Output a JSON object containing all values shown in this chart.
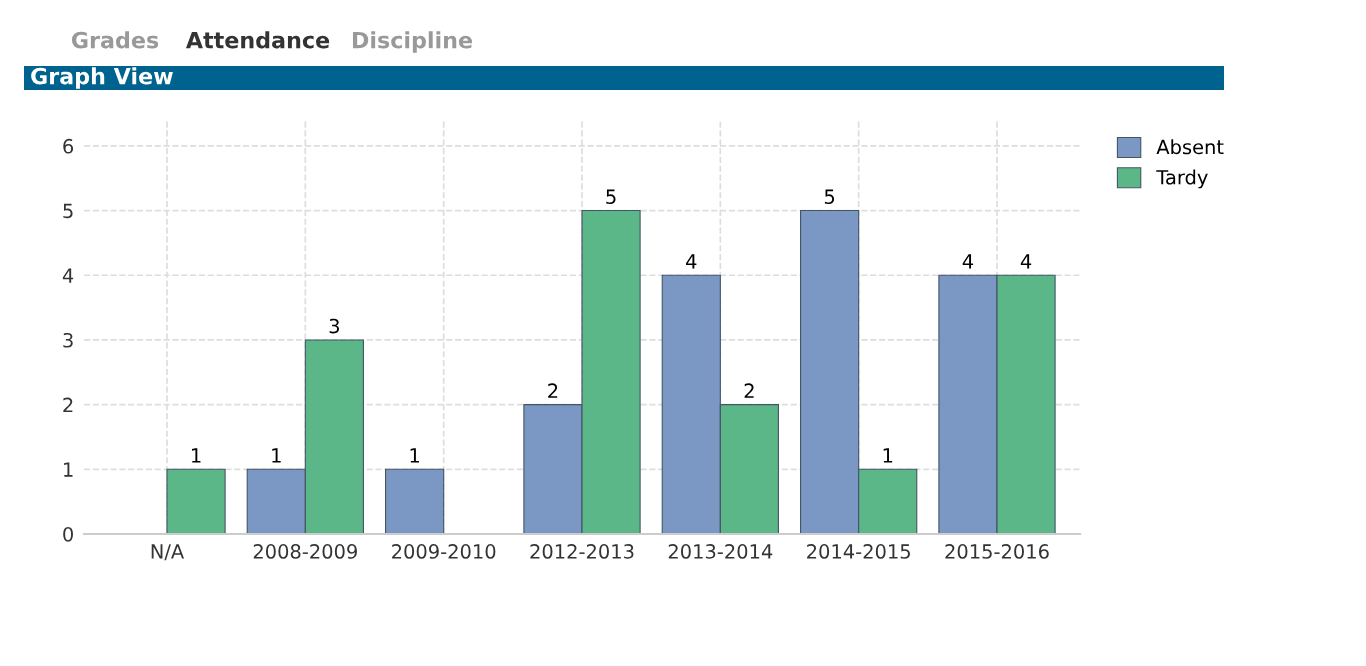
{
  "chart_data": {
    "type": "bar",
    "title": "Graph View",
    "annotations": [
      "Grades",
      "Attendance",
      "Discipline"
    ],
    "categories": [
      "N/A",
      "2008-2009",
      "2009-2010",
      "2012-2013",
      "2013-2014",
      "2014-2015",
      "2015-2016"
    ],
    "series": [
      {
        "name": "Absent",
        "color": "#7b98c4",
        "values": [
          null,
          1,
          1,
          2,
          4,
          5,
          4
        ]
      },
      {
        "name": "Tardy",
        "color": "#5bb787",
        "values": [
          1,
          3,
          null,
          5,
          2,
          1,
          4
        ]
      }
    ],
    "ylim": [
      0,
      6.4
    ],
    "yticks": [
      0,
      1,
      2,
      3,
      4,
      5,
      6
    ],
    "grid": true,
    "legend": "top right",
    "data_labels": true
  }
}
